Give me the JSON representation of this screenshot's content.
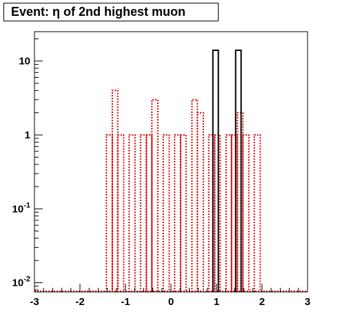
{
  "chart_data": {
    "type": "histogram",
    "title": "Event: η of 2nd highest muon",
    "xlabel": "",
    "ylabel": "",
    "xlim": [
      -3,
      3
    ],
    "ylim": [
      0.0075,
      25
    ],
    "yscale": "log",
    "x_ticks": [
      "-3",
      "-2",
      "-1",
      "0",
      "1",
      "2",
      "3"
    ],
    "y_ticks": [
      {
        "value": 0.01,
        "base": "10",
        "exp": "-2"
      },
      {
        "value": 0.1,
        "base": "10",
        "exp": "-1"
      },
      {
        "value": 1,
        "label": "1"
      },
      {
        "value": 10,
        "label": "10"
      }
    ],
    "series": [
      {
        "color": "#000000",
        "style": "solid",
        "bins": [
          {
            "x0": 0.92,
            "x1": 1.04,
            "y": 14
          },
          {
            "x0": 1.42,
            "x1": 1.54,
            "y": 14
          }
        ]
      },
      {
        "color": "#e00000",
        "style": "dotted",
        "bins": [
          {
            "x0": -1.42,
            "x1": -1.29,
            "y": 1
          },
          {
            "x0": -1.29,
            "x1": -1.17,
            "y": 4
          },
          {
            "x0": -1.17,
            "x1": -1.04,
            "y": 1
          },
          {
            "x0": -0.92,
            "x1": -0.79,
            "y": 1
          },
          {
            "x0": -0.67,
            "x1": -0.54,
            "y": 1
          },
          {
            "x0": -0.54,
            "x1": -0.42,
            "y": 1
          },
          {
            "x0": -0.42,
            "x1": -0.29,
            "y": 3
          },
          {
            "x0": -0.17,
            "x1": -0.04,
            "y": 1
          },
          {
            "x0": 0.08,
            "x1": 0.21,
            "y": 1
          },
          {
            "x0": 0.21,
            "x1": 0.33,
            "y": 1
          },
          {
            "x0": 0.46,
            "x1": 0.58,
            "y": 3
          },
          {
            "x0": 0.58,
            "x1": 0.71,
            "y": 2
          },
          {
            "x0": 0.83,
            "x1": 0.96,
            "y": 1
          },
          {
            "x0": 0.96,
            "x1": 1.08,
            "y": 1
          },
          {
            "x0": 1.21,
            "x1": 1.33,
            "y": 1
          },
          {
            "x0": 1.33,
            "x1": 1.46,
            "y": 1
          },
          {
            "x0": 1.46,
            "x1": 1.58,
            "y": 2
          },
          {
            "x0": 1.58,
            "x1": 1.71,
            "y": 1
          },
          {
            "x0": 1.83,
            "x1": 1.96,
            "y": 1
          }
        ]
      }
    ]
  }
}
